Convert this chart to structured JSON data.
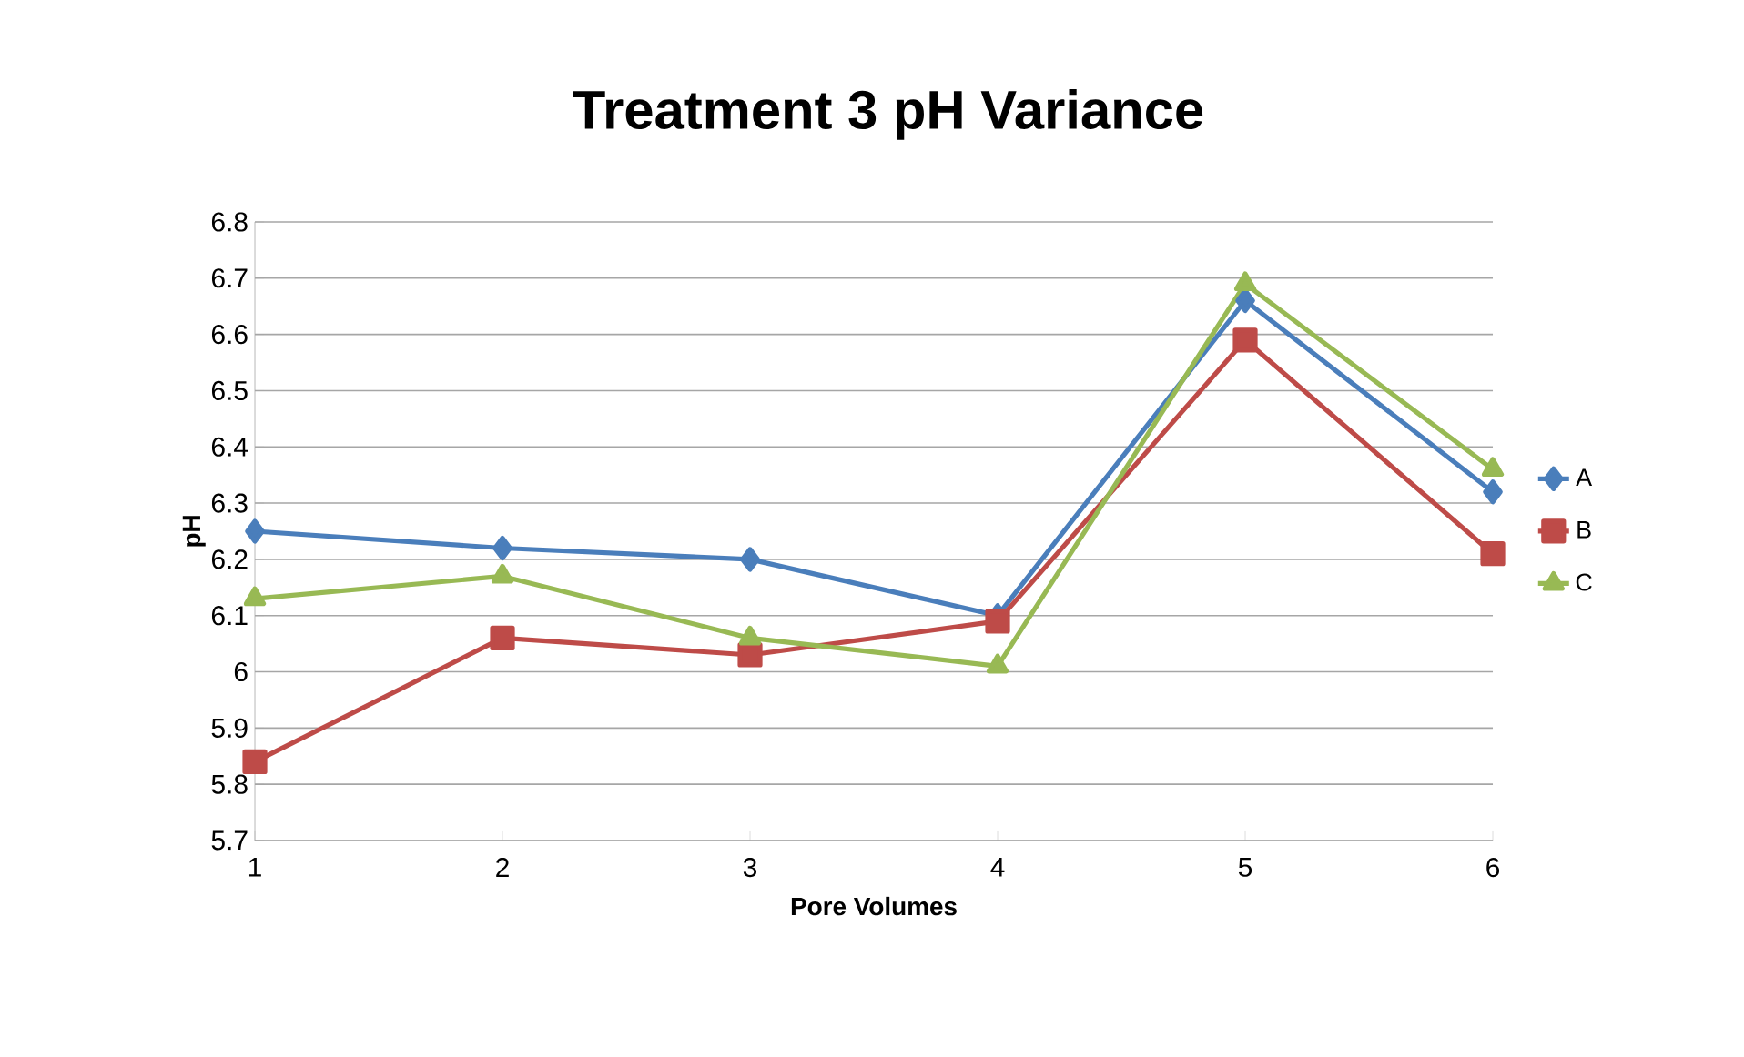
{
  "chart_data": {
    "type": "line",
    "title": "Treatment 3 pH Variance",
    "xlabel": "Pore Volumes",
    "ylabel": "pH",
    "categories": [
      "1",
      "2",
      "3",
      "4",
      "5",
      "6"
    ],
    "series": [
      {
        "name": "A",
        "color": "#4a7ebb",
        "marker": "diamond",
        "values": [
          6.25,
          6.22,
          6.2,
          6.1,
          6.66,
          6.32
        ]
      },
      {
        "name": "B",
        "color": "#be4b48",
        "marker": "square",
        "values": [
          5.84,
          6.06,
          6.03,
          6.09,
          6.59,
          6.21
        ]
      },
      {
        "name": "C",
        "color": "#98b954",
        "marker": "triangle",
        "values": [
          6.13,
          6.17,
          6.06,
          6.01,
          6.69,
          6.36
        ]
      }
    ],
    "ylim": [
      5.7,
      6.8
    ],
    "yticks": [
      5.7,
      5.8,
      5.9,
      6,
      6.1,
      6.2,
      6.3,
      6.4,
      6.5,
      6.6,
      6.7,
      6.8
    ],
    "grid": "y",
    "legend": "right"
  }
}
